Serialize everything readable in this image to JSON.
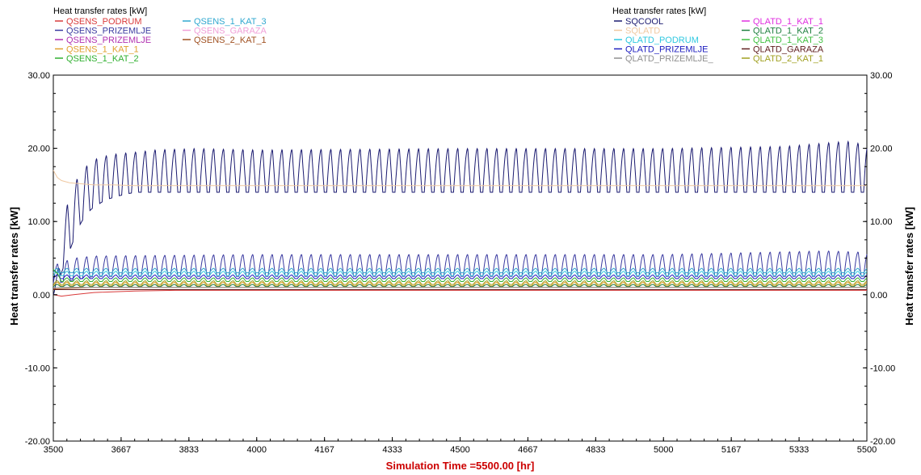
{
  "chart_data": {
    "type": "line",
    "xlabel": "Simulation Time =5500.00 [hr]",
    "xlabel_color": "#cc0000",
    "ylabel_left": "Heat transfer rates [kW]",
    "ylabel_right": "Heat transfer rates [kW]",
    "xlim": [
      3500,
      5500
    ],
    "ylim": [
      -20,
      30
    ],
    "grid": false,
    "x_ticks": [
      "3500",
      "3667",
      "3833",
      "4000",
      "4167",
      "4333",
      "4500",
      "4667",
      "4833",
      "5000",
      "5167",
      "5333",
      "5500"
    ],
    "y_ticks": [
      "30.00",
      "20.00",
      "10.00",
      "0.00",
      "-10.00",
      "-20.00"
    ],
    "legend_left": {
      "title": "Heat transfer rates [kW]",
      "placement": "top-left",
      "entries": [
        {
          "name": "QSENS_PODRUM",
          "color": "#d93a3a"
        },
        {
          "name": "QSENS_PRIZEMLJE",
          "color": "#3a3aa0"
        },
        {
          "name": "QSENS_PRIZEMLJE",
          "color": "#b030b0"
        },
        {
          "name": "QSENS_1_KAT_1",
          "color": "#e0a030"
        },
        {
          "name": "QSENS_1_KAT_2",
          "color": "#30b030"
        },
        {
          "name": "QSENS_1_KAT_3",
          "color": "#30a8d0"
        },
        {
          "name": "QSENS_GARAZA",
          "color": "#f0a0d8"
        },
        {
          "name": "QSENS_2_KAT_1",
          "color": "#a05020"
        }
      ]
    },
    "legend_right": {
      "title": "Heat transfer rates [kW]",
      "placement": "top-right",
      "entries": [
        {
          "name": "SQCOOL",
          "color": "#1a1a70"
        },
        {
          "name": "SQLATD",
          "color": "#f0c8a0"
        },
        {
          "name": "QLATD_PODRUM",
          "color": "#30c8e0"
        },
        {
          "name": "QLATD_PRIZEMLJE",
          "color": "#2020c0"
        },
        {
          "name": "QLATD_PRIZEMLJE_",
          "color": "#909090"
        },
        {
          "name": "QLATD_1_KAT_1",
          "color": "#e030e0"
        },
        {
          "name": "QLATD_1_KAT_2",
          "color": "#208040"
        },
        {
          "name": "QLATD_1_KAT_3",
          "color": "#40c040"
        },
        {
          "name": "QLATD_GARAZA",
          "color": "#602020"
        },
        {
          "name": "QLATD_2_KAT_1",
          "color": "#a0a020"
        }
      ]
    },
    "series": [
      {
        "name": "SQCOOL",
        "color": "#1a1a70",
        "x": [
          3500,
          3510,
          3520,
          3540,
          3560,
          3580,
          3600,
          3630,
          3660,
          3700,
          3750,
          3850,
          4000,
          4500,
          5000,
          5300,
          5450,
          5500
        ],
        "y_low": [
          0.0,
          1.0,
          3.0,
          6.0,
          9.0,
          11.0,
          12.0,
          13.0,
          13.5,
          14.0,
          14.0,
          14.0,
          14.0,
          14.0,
          14.0,
          14.0,
          14.0,
          14.0
        ],
        "y_high": [
          0.0,
          3.0,
          8.0,
          14.0,
          16.0,
          17.5,
          18.5,
          19.0,
          19.3,
          19.5,
          19.8,
          20.0,
          19.8,
          20.0,
          20.0,
          20.3,
          21.0,
          20.5
        ],
        "period_hours": 24
      },
      {
        "name": "SQLATD",
        "color": "#f0c8a0",
        "x": [
          3500,
          3505,
          3510,
          3520,
          3540,
          3560,
          3580,
          3600,
          3650,
          3700,
          5500
        ],
        "y": [
          17.0,
          16.5,
          16.0,
          15.6,
          15.3,
          15.2,
          15.1,
          15.0,
          15.0,
          14.9,
          14.9
        ]
      },
      {
        "name": "QSENS_PRIZEMLJE",
        "color": "#3a3aa0",
        "x": [
          3500,
          3550,
          3600,
          4000,
          4500,
          5000,
          5400,
          5500
        ],
        "y_low": [
          1.5,
          2.0,
          2.5,
          2.5,
          2.5,
          2.5,
          2.5,
          2.5
        ],
        "y_high": [
          4.0,
          5.0,
          5.3,
          5.5,
          5.5,
          5.5,
          6.0,
          5.8
        ],
        "period_hours": 24
      },
      {
        "name": "QSENS_1_KAT_3",
        "color": "#30a8d0",
        "x": [
          3500,
          5500
        ],
        "y_low": [
          3.0,
          3.0
        ],
        "y_high": [
          3.6,
          3.6
        ],
        "period_hours": 24
      },
      {
        "name": "QLATD_PODRUM",
        "color": "#30c8e0",
        "x": [
          3500,
          5500
        ],
        "y_low": [
          2.6,
          2.6
        ],
        "y_high": [
          3.2,
          3.2
        ],
        "period_hours": 24
      },
      {
        "name": "QLATD_PRIZEMLJE",
        "color": "#2020c0",
        "x": [
          3500,
          5500
        ],
        "y_low": [
          2.2,
          2.2
        ],
        "y_high": [
          2.7,
          2.7
        ],
        "period_hours": 24
      },
      {
        "name": "QSENS_1_KAT_2",
        "color": "#30b030",
        "x": [
          3500,
          3520,
          5500
        ],
        "y_low": [
          3.5,
          1.8,
          1.8
        ],
        "y_high": [
          3.5,
          2.3,
          2.3
        ],
        "period_hours": 24
      },
      {
        "name": "QLATD_2_KAT_1",
        "color": "#a0a020",
        "x": [
          3500,
          5500
        ],
        "y_low": [
          1.4,
          1.4
        ],
        "y_high": [
          1.9,
          1.9
        ],
        "period_hours": 24
      },
      {
        "name": "QSENS_1_KAT_1",
        "color": "#e0a030",
        "x": [
          3500,
          5500
        ],
        "y_low": [
          1.2,
          1.2
        ],
        "y_high": [
          1.7,
          1.7
        ],
        "period_hours": 24
      },
      {
        "name": "QLATD_1_KAT_2",
        "color": "#208040",
        "x": [
          3500,
          5500
        ],
        "y_low": [
          1.1,
          1.1
        ],
        "y_high": [
          1.4,
          1.4
        ],
        "period_hours": 24
      },
      {
        "name": "QSENS_2_KAT_1",
        "color": "#a05020",
        "x": [
          3500,
          3600,
          5500
        ],
        "y": [
          0.8,
          1.0,
          1.0
        ]
      },
      {
        "name": "QSENS_PODRUM",
        "color": "#d93a3a",
        "x": [
          3500,
          3520,
          3550,
          3600,
          3700,
          3800,
          4000,
          5500
        ],
        "y": [
          0.0,
          -0.2,
          0.0,
          0.3,
          0.5,
          0.6,
          0.6,
          0.6
        ]
      },
      {
        "name": "QLATD_GARAZA",
        "color": "#602020",
        "x": [
          3500,
          5500
        ],
        "y": [
          0.7,
          0.7
        ]
      },
      {
        "name": "QLATD_PRIZEMLJE_",
        "color": "#909090",
        "x": [
          3500,
          5500
        ],
        "y": [
          1.0,
          1.0
        ]
      }
    ]
  }
}
